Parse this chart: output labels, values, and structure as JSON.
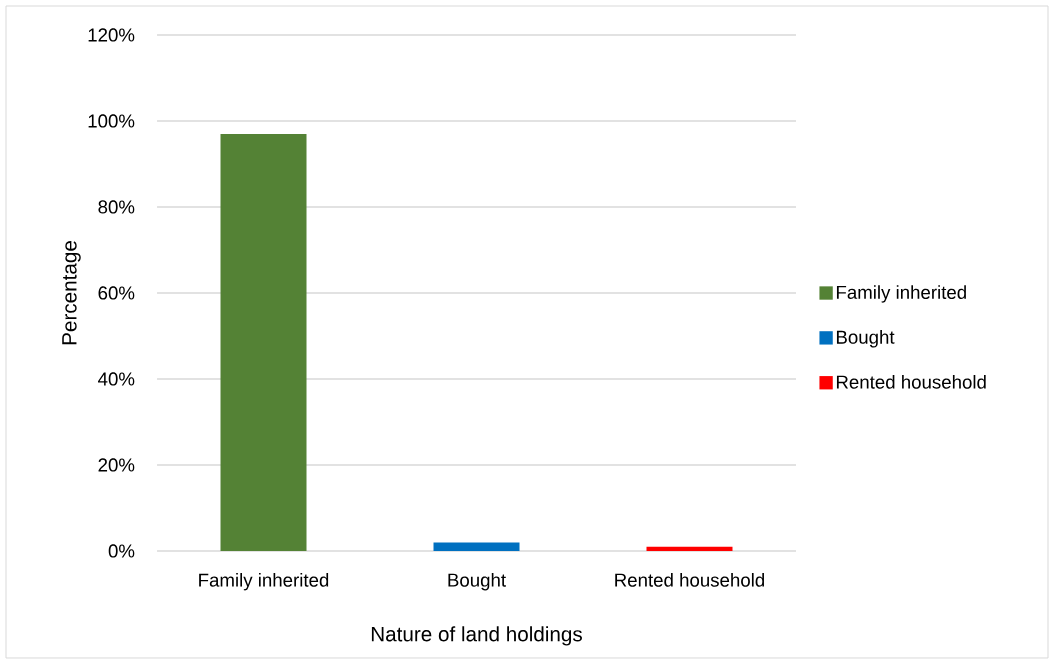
{
  "chart_data": {
    "type": "bar",
    "xlabel": "Nature of land holdings",
    "ylabel": "Percentage",
    "categories": [
      "Family inherited",
      "Bought",
      "Rented household"
    ],
    "series": [
      {
        "name": "Family inherited",
        "color": "#548235",
        "values": [
          97,
          null,
          null
        ]
      },
      {
        "name": "Bought",
        "color": "#0070c0",
        "values": [
          null,
          2,
          null
        ]
      },
      {
        "name": "Rented household",
        "color": "#ff0000",
        "values": [
          null,
          null,
          1
        ]
      }
    ],
    "ylim": [
      0,
      120
    ],
    "yticks": [
      {
        "value": 0,
        "label": "0%"
      },
      {
        "value": 20,
        "label": "20%"
      },
      {
        "value": 40,
        "label": "40%"
      },
      {
        "value": 60,
        "label": "60%"
      },
      {
        "value": 80,
        "label": "80%"
      },
      {
        "value": 100,
        "label": "100%"
      },
      {
        "value": 120,
        "label": "120%"
      }
    ],
    "grid": "y",
    "legend": "right"
  }
}
